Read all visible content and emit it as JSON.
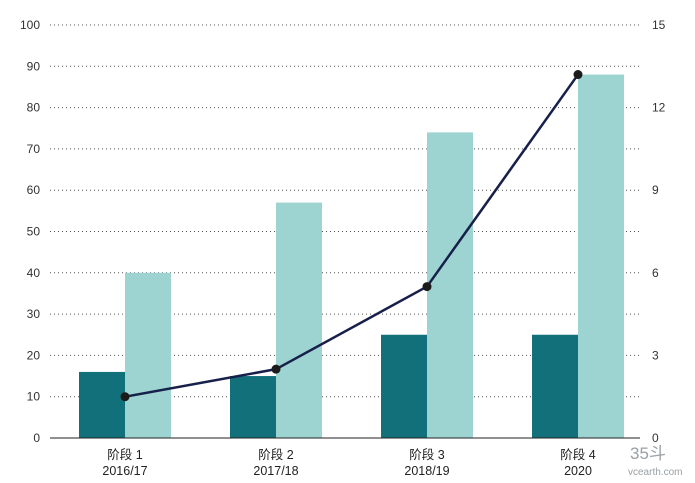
{
  "chart_data": {
    "type": "bar",
    "categories": [
      {
        "label": "阶段 1",
        "sublabel": "2016/17"
      },
      {
        "label": "阶段 2",
        "sublabel": "2017/18"
      },
      {
        "label": "阶段 3",
        "sublabel": "2018/19"
      },
      {
        "label": "阶段 4",
        "sublabel": "2020"
      }
    ],
    "series": [
      {
        "type": "bar",
        "axis": "left",
        "color": "#12707a",
        "values": [
          16,
          15,
          25,
          25
        ]
      },
      {
        "type": "bar",
        "axis": "left",
        "color": "#9dd4d1",
        "values": [
          40,
          57,
          74,
          88
        ]
      },
      {
        "type": "line",
        "axis": "right",
        "color": "#17204a",
        "values": [
          1.5,
          2.5,
          5.5,
          13.2
        ]
      }
    ],
    "y_left": {
      "min": 0,
      "max": 100,
      "ticks": [
        0,
        10,
        20,
        30,
        40,
        50,
        60,
        70,
        80,
        90,
        100
      ]
    },
    "y_right": {
      "min": 0,
      "max": 15,
      "ticks": [
        0,
        3,
        6,
        9,
        12,
        15
      ]
    },
    "grid": "dotted horizontal"
  },
  "watermark": {
    "logo": "35斗",
    "site": "vcearth.com"
  }
}
